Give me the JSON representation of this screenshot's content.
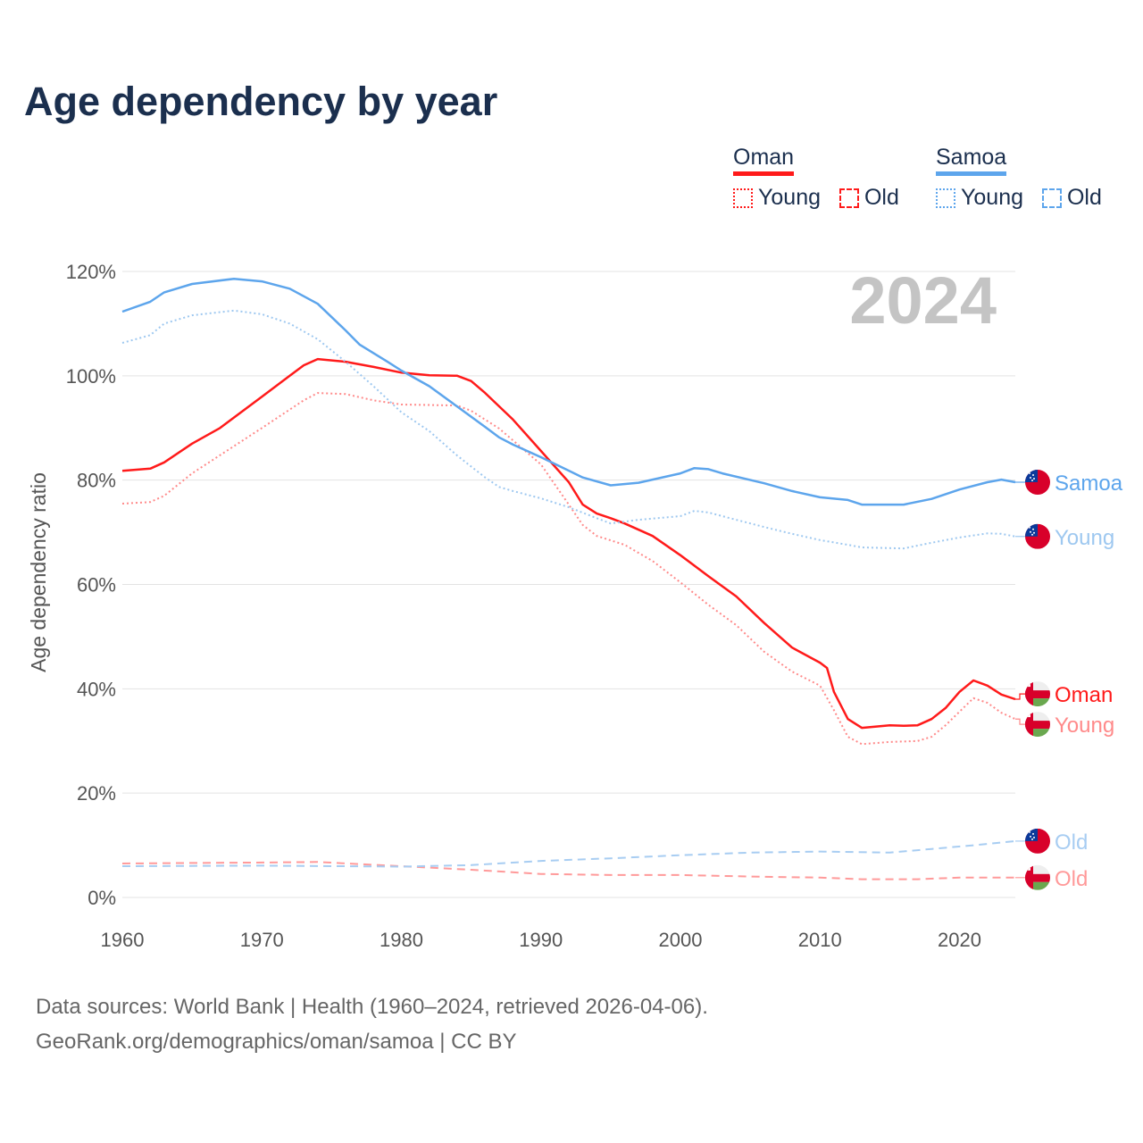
{
  "title": "Age dependency by year",
  "legend": [
    {
      "name": "Oman",
      "color": "#ff1a1a",
      "items": [
        {
          "label": "Young",
          "style": "dotted"
        },
        {
          "label": "Old",
          "style": "dashed"
        }
      ]
    },
    {
      "name": "Samoa",
      "color": "#5da5ec",
      "items": [
        {
          "label": "Young",
          "style": "dotted"
        },
        {
          "label": "Old",
          "style": "dashed"
        }
      ]
    }
  ],
  "source": {
    "line1": "Data sources: World Bank | Health (1960–2024, retrieved 2026-04-06).",
    "line2": "GeoRank.org/demographics/oman/samoa | CC BY"
  },
  "chart_data": {
    "type": "line",
    "title": "Age dependency by year",
    "year_watermark": "2024",
    "xlabel": "",
    "ylabel": "Age dependency ratio",
    "xlim": [
      1960,
      2024
    ],
    "ylim": [
      0,
      120
    ],
    "xticks": [
      "1960",
      "1970",
      "1980",
      "1990",
      "2000",
      "2010",
      "2020"
    ],
    "yticks": [
      "0%",
      "20%",
      "40%",
      "60%",
      "80%",
      "100%",
      "120%"
    ],
    "grid": true,
    "legend_position": "top-right",
    "series": [
      {
        "name": "Oman",
        "label": "Oman",
        "country": "oman",
        "style": "solid",
        "color": "#ff1a1a",
        "x": [
          1960,
          1962,
          1963,
          1965,
          1967,
          1970,
          1972,
          1973,
          1974,
          1976,
          1978,
          1980,
          1982,
          1984,
          1985,
          1986,
          1988,
          1990,
          1992,
          1993,
          1994,
          1995,
          1996,
          1998,
          2000,
          2002,
          2004,
          2006,
          2008,
          2010,
          2010.5,
          2011,
          2012,
          2013,
          2015,
          2016,
          2017,
          2018,
          2019,
          2020,
          2021,
          2022,
          2023,
          2024
        ],
        "y": [
          81.8,
          82.2,
          83.4,
          87,
          90,
          96,
          100,
          102,
          103.2,
          102.7,
          101.7,
          100.6,
          100.1,
          100,
          99,
          96.7,
          91.6,
          85.6,
          79.6,
          75.3,
          73.6,
          72.7,
          71.7,
          69.3,
          65.6,
          61.6,
          57.7,
          52.6,
          47.9,
          45,
          44,
          39.4,
          34.2,
          32.5,
          33,
          32.9,
          33,
          34.2,
          36.3,
          39.4,
          41.6,
          40.6,
          38.9,
          38
        ]
      },
      {
        "name": "Oman Young",
        "label": "Young",
        "country": "oman",
        "style": "dotted",
        "color": "#ff8a8a",
        "x": [
          1960,
          1962,
          1963,
          1965,
          1970,
          1973,
          1974,
          1976,
          1978,
          1980,
          1984,
          1985,
          1987,
          1990,
          1992,
          1993,
          1994,
          1996,
          1998,
          2000,
          2002,
          2004,
          2006,
          2008,
          2010,
          2011,
          2012,
          2013,
          2015,
          2017,
          2018,
          2019,
          2020,
          2021,
          2022,
          2023,
          2024
        ],
        "y": [
          75.5,
          75.8,
          77,
          81.3,
          90,
          95.3,
          96.7,
          96.5,
          95.3,
          94.5,
          94.3,
          93.3,
          89.9,
          83,
          75.3,
          71.4,
          69.3,
          67.6,
          64.5,
          60.4,
          56.1,
          52.2,
          47.1,
          43.3,
          40.6,
          35.9,
          30.8,
          29.4,
          29.8,
          30,
          30.8,
          33,
          35.6,
          38.2,
          37.3,
          35.4,
          34.2
        ]
      },
      {
        "name": "Oman Old",
        "label": "Old",
        "country": "oman",
        "style": "dashed",
        "color": "#ff9a9a",
        "x": [
          1960,
          1965,
          1970,
          1974,
          1980,
          1985,
          1990,
          1995,
          2000,
          2005,
          2010,
          2013,
          2017,
          2020,
          2024
        ],
        "y": [
          6.5,
          6.6,
          6.7,
          6.8,
          6,
          5.3,
          4.5,
          4.3,
          4.3,
          4,
          3.8,
          3.5,
          3.5,
          3.8,
          3.8
        ]
      },
      {
        "name": "Samoa",
        "label": "Samoa",
        "country": "samoa",
        "style": "solid",
        "color": "#5da5ec",
        "x": [
          1960,
          1962,
          1963,
          1965,
          1968,
          1970,
          1972,
          1974,
          1976,
          1977,
          1979,
          1980,
          1982,
          1984,
          1986,
          1987,
          1988,
          1990,
          1993,
          1995,
          1997,
          2000,
          2001,
          2002,
          2003,
          2006,
          2008,
          2010,
          2012,
          2013,
          2016,
          2018,
          2020,
          2022,
          2023,
          2024
        ],
        "y": [
          112.3,
          114.2,
          116,
          117.6,
          118.6,
          118.1,
          116.7,
          113.8,
          108.7,
          106,
          102.7,
          101,
          98,
          94.1,
          90.2,
          88.2,
          86.8,
          84.4,
          80.5,
          79,
          79.5,
          81.3,
          82.3,
          82.1,
          81.3,
          79.4,
          77.9,
          76.7,
          76.2,
          75.3,
          75.3,
          76.4,
          78.2,
          79.6,
          80.1,
          79.6
        ]
      },
      {
        "name": "Samoa Young",
        "label": "Young",
        "country": "samoa",
        "style": "dotted",
        "color": "#9ec8f0",
        "x": [
          1960,
          1962,
          1963,
          1965,
          1968,
          1970,
          1972,
          1974,
          1976,
          1978,
          1980,
          1982,
          1984,
          1986,
          1987,
          1988,
          1990,
          1992,
          1994,
          1995,
          1997,
          2000,
          2001,
          2002,
          2004,
          2006,
          2008,
          2010,
          2012,
          2013,
          2016,
          2018,
          2020,
          2022,
          2023,
          2024
        ],
        "y": [
          106.3,
          107.8,
          110,
          111.6,
          112.5,
          111.8,
          110,
          107,
          102.7,
          98,
          93,
          89.4,
          84.7,
          80.5,
          78.7,
          77.9,
          76.5,
          74.8,
          72.7,
          71.7,
          72.4,
          73.1,
          74.1,
          73.8,
          72.4,
          71,
          69.7,
          68.5,
          67.6,
          67.1,
          66.9,
          68,
          69,
          69.8,
          69.7,
          69.2
        ]
      },
      {
        "name": "Samoa Old",
        "label": "Old",
        "country": "samoa",
        "style": "dashed",
        "color": "#a8cdf2",
        "x": [
          1960,
          1970,
          1980,
          1985,
          1990,
          1995,
          2000,
          2005,
          2010,
          2015,
          2018,
          2021,
          2024
        ],
        "y": [
          6,
          6.1,
          5.9,
          6.2,
          7,
          7.5,
          8.1,
          8.6,
          8.8,
          8.6,
          9.3,
          10,
          10.8
        ]
      }
    ]
  }
}
